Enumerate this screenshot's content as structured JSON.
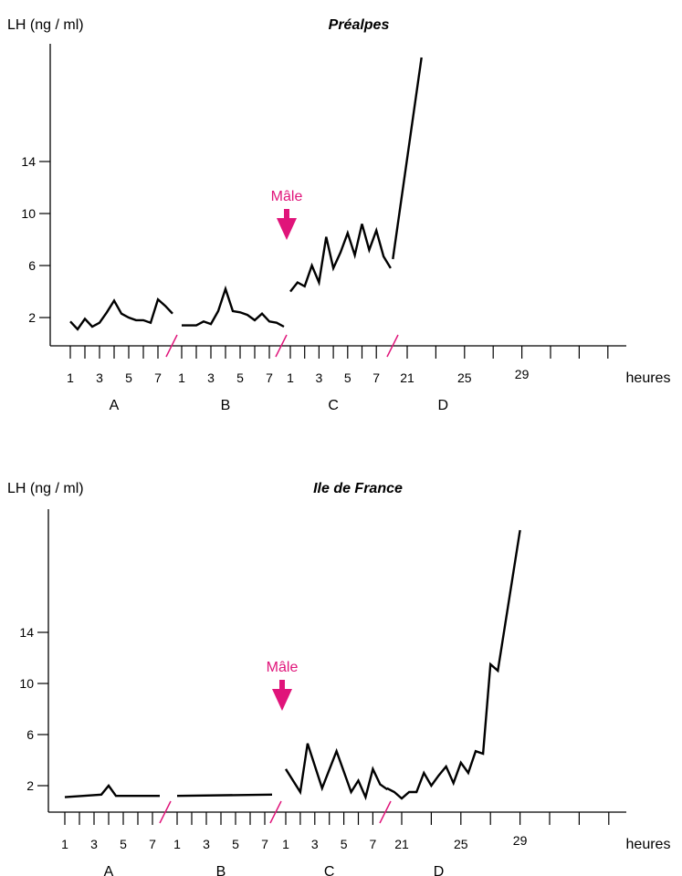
{
  "chart_data": [
    {
      "type": "line",
      "title": "Préalpes",
      "ylabel": "LH (ng / ml)",
      "xlabel": "heures",
      "yticks": [
        2,
        6,
        10,
        14
      ],
      "ylim": [
        0,
        23
      ],
      "grid": false,
      "annotation": {
        "text": "Mâle",
        "color": "#e0147a",
        "at": "C-start"
      },
      "phases": [
        {
          "name": "A",
          "xticks": [
            1,
            3,
            5,
            7
          ],
          "hours": [
            1,
            1.5,
            2,
            2.5,
            3,
            3.5,
            4,
            4.5,
            5,
            5.5,
            6,
            6.5,
            7,
            7.5,
            8
          ],
          "values": [
            1.7,
            1.1,
            1.9,
            1.3,
            1.6,
            2.4,
            3.3,
            2.3,
            2.0,
            1.8,
            1.8,
            1.6,
            3.4,
            2.9,
            2.3
          ]
        },
        {
          "name": "B",
          "xticks": [
            1,
            3,
            5,
            7
          ],
          "hours": [
            1,
            1.5,
            2,
            2.5,
            3,
            3.5,
            4,
            4.5,
            5,
            5.5,
            6,
            6.5,
            7,
            7.5,
            8
          ],
          "values": [
            1.4,
            1.4,
            1.4,
            1.7,
            1.5,
            2.5,
            4.2,
            2.5,
            2.4,
            2.2,
            1.8,
            2.3,
            1.7,
            1.6,
            1.3
          ]
        },
        {
          "name": "C",
          "xticks": [
            1,
            3,
            5,
            7
          ],
          "hours": [
            1,
            1.5,
            2,
            2.5,
            3,
            3.5,
            4,
            4.5,
            5,
            5.5,
            6,
            6.5,
            7,
            7.5,
            8
          ],
          "values": [
            4.0,
            4.7,
            4.4,
            6.0,
            4.7,
            8.2,
            5.8,
            7.0,
            8.5,
            6.8,
            9.2,
            7.2,
            8.7,
            6.7,
            5.8
          ]
        },
        {
          "name": "D",
          "xticks": [
            21,
            25,
            29
          ],
          "hours": [
            20,
            22
          ],
          "values": [
            6.5,
            22.0
          ]
        }
      ]
    },
    {
      "type": "line",
      "title": "Ile de France",
      "ylabel": "LH (ng / ml)",
      "xlabel": "heures",
      "yticks": [
        2,
        6,
        10,
        14
      ],
      "ylim": [
        0,
        23
      ],
      "grid": false,
      "annotation": {
        "text": "Mâle",
        "color": "#e0147a",
        "at": "C-start"
      },
      "phases": [
        {
          "name": "A",
          "xticks": [
            1,
            3,
            5,
            7
          ],
          "hours": [
            1,
            3.5,
            4,
            4.5,
            7.5
          ],
          "values": [
            1.1,
            1.3,
            2.0,
            1.2,
            1.2
          ]
        },
        {
          "name": "B",
          "xticks": [
            1,
            3,
            5,
            7
          ],
          "hours": [
            1,
            7.5
          ],
          "values": [
            1.2,
            1.3
          ]
        },
        {
          "name": "C",
          "xticks": [
            1,
            3,
            5,
            7
          ],
          "hours": [
            1,
            2,
            2.5,
            3.5,
            4.5,
            5.5,
            6,
            6.5,
            7,
            7.5,
            8
          ],
          "values": [
            3.3,
            1.5,
            5.3,
            1.8,
            4.7,
            1.5,
            2.4,
            1.1,
            3.3,
            2.1,
            1.7
          ]
        },
        {
          "name": "D",
          "xticks": [
            21,
            25,
            29
          ],
          "hours": [
            20,
            20.5,
            21,
            21.5,
            22,
            22.5,
            23,
            23.5,
            24,
            24.5,
            25,
            25.5,
            26,
            26.5,
            27,
            27.5,
            29
          ],
          "values": [
            1.8,
            1.5,
            1.0,
            1.5,
            1.5,
            3.0,
            2.0,
            2.8,
            3.5,
            2.2,
            3.8,
            3.0,
            4.7,
            4.5,
            11.5,
            11.0,
            22.0
          ]
        }
      ]
    }
  ]
}
